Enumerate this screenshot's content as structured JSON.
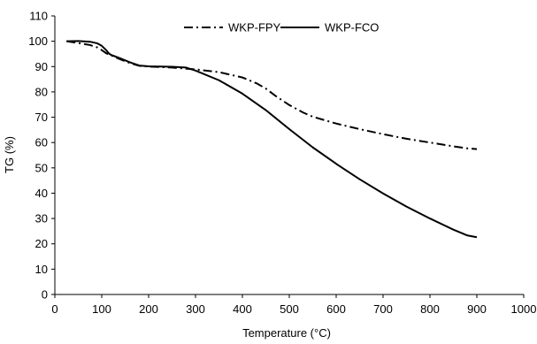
{
  "chart_data": {
    "type": "line",
    "title": "",
    "xlabel": "Temperature (°C)",
    "ylabel": "TG (%)",
    "xlim": [
      0,
      1000
    ],
    "ylim": [
      0,
      110
    ],
    "x_ticks": [
      0,
      100,
      200,
      300,
      400,
      500,
      600,
      700,
      800,
      900,
      1000
    ],
    "y_ticks": [
      0,
      10,
      20,
      30,
      40,
      50,
      60,
      70,
      80,
      90,
      100,
      110
    ],
    "grid": false,
    "legend_position": "top-center",
    "series": [
      {
        "name": "WKP-FPY",
        "style": "dash-dot",
        "color": "#000000",
        "x": [
          25,
          50,
          75,
          90,
          100,
          110,
          120,
          140,
          160,
          180,
          200,
          250,
          300,
          350,
          400,
          430,
          450,
          470,
          500,
          530,
          550,
          600,
          650,
          700,
          750,
          800,
          850,
          880,
          900
        ],
        "y": [
          100,
          99.3,
          98.5,
          97.6,
          96.5,
          95.2,
          94.4,
          92.8,
          91.4,
          90.3,
          90.0,
          89.6,
          88.9,
          87.8,
          85.7,
          83.4,
          81.3,
          78.5,
          74.8,
          71.8,
          70.2,
          67.5,
          65.3,
          63.3,
          61.5,
          60.0,
          58.5,
          57.7,
          57.4
        ]
      },
      {
        "name": "WKP-FCO",
        "style": "solid",
        "color": "#000000",
        "x": [
          25,
          50,
          75,
          90,
          100,
          110,
          115,
          120,
          140,
          160,
          180,
          200,
          250,
          280,
          300,
          350,
          400,
          450,
          500,
          550,
          600,
          650,
          700,
          750,
          800,
          850,
          880,
          900
        ],
        "y": [
          100,
          100.1,
          99.8,
          99.2,
          98.2,
          96.4,
          95.2,
          94.6,
          93.2,
          91.7,
          90.4,
          90.1,
          89.9,
          89.6,
          88.4,
          84.6,
          79.3,
          72.8,
          65.3,
          58.1,
          51.6,
          45.5,
          39.9,
          34.7,
          30.0,
          25.6,
          23.3,
          22.6
        ]
      }
    ]
  }
}
